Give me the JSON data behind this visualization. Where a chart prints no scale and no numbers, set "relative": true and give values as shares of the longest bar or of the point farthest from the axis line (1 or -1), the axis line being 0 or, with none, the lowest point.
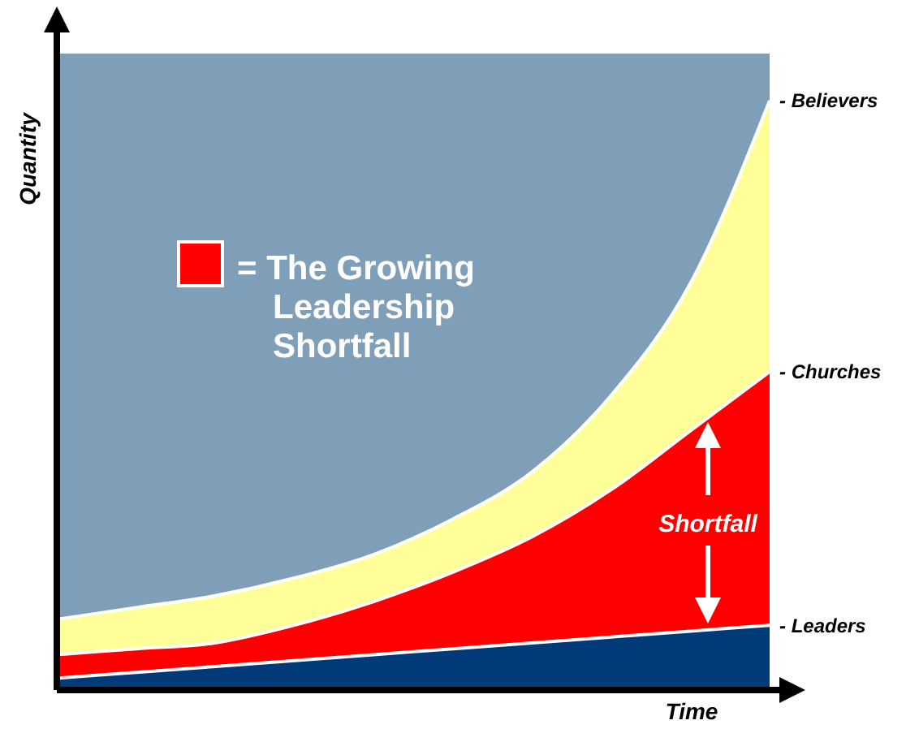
{
  "chart_data": {
    "type": "area",
    "relative": true,
    "xlabel": "Time",
    "ylabel": "Quantity",
    "categories": [
      null,
      null,
      null,
      null,
      null,
      null,
      null,
      null,
      null,
      null
    ],
    "series": [
      {
        "name": "- Believers",
        "color": "#ffff99",
        "values": [
          0.12,
          0.14,
          0.16,
          0.19,
          0.23,
          0.29,
          0.37,
          0.5,
          0.69,
          1
        ]
      },
      {
        "name": "- Churches",
        "color": "#ff0000",
        "values": [
          0.06,
          0.07,
          0.08,
          0.11,
          0.15,
          0.2,
          0.26,
          0.34,
          0.44,
          0.54
        ]
      },
      {
        "name": "- Leaders",
        "color": "#003a78",
        "values": [
          0.02,
          0.03,
          0.04,
          0.05,
          0.06,
          0.07,
          0.08,
          0.09,
          0.1,
          0.11
        ]
      }
    ],
    "annotations": [
      "= The Growing Leadership Shortfall",
      "Shortfall"
    ]
  }
}
